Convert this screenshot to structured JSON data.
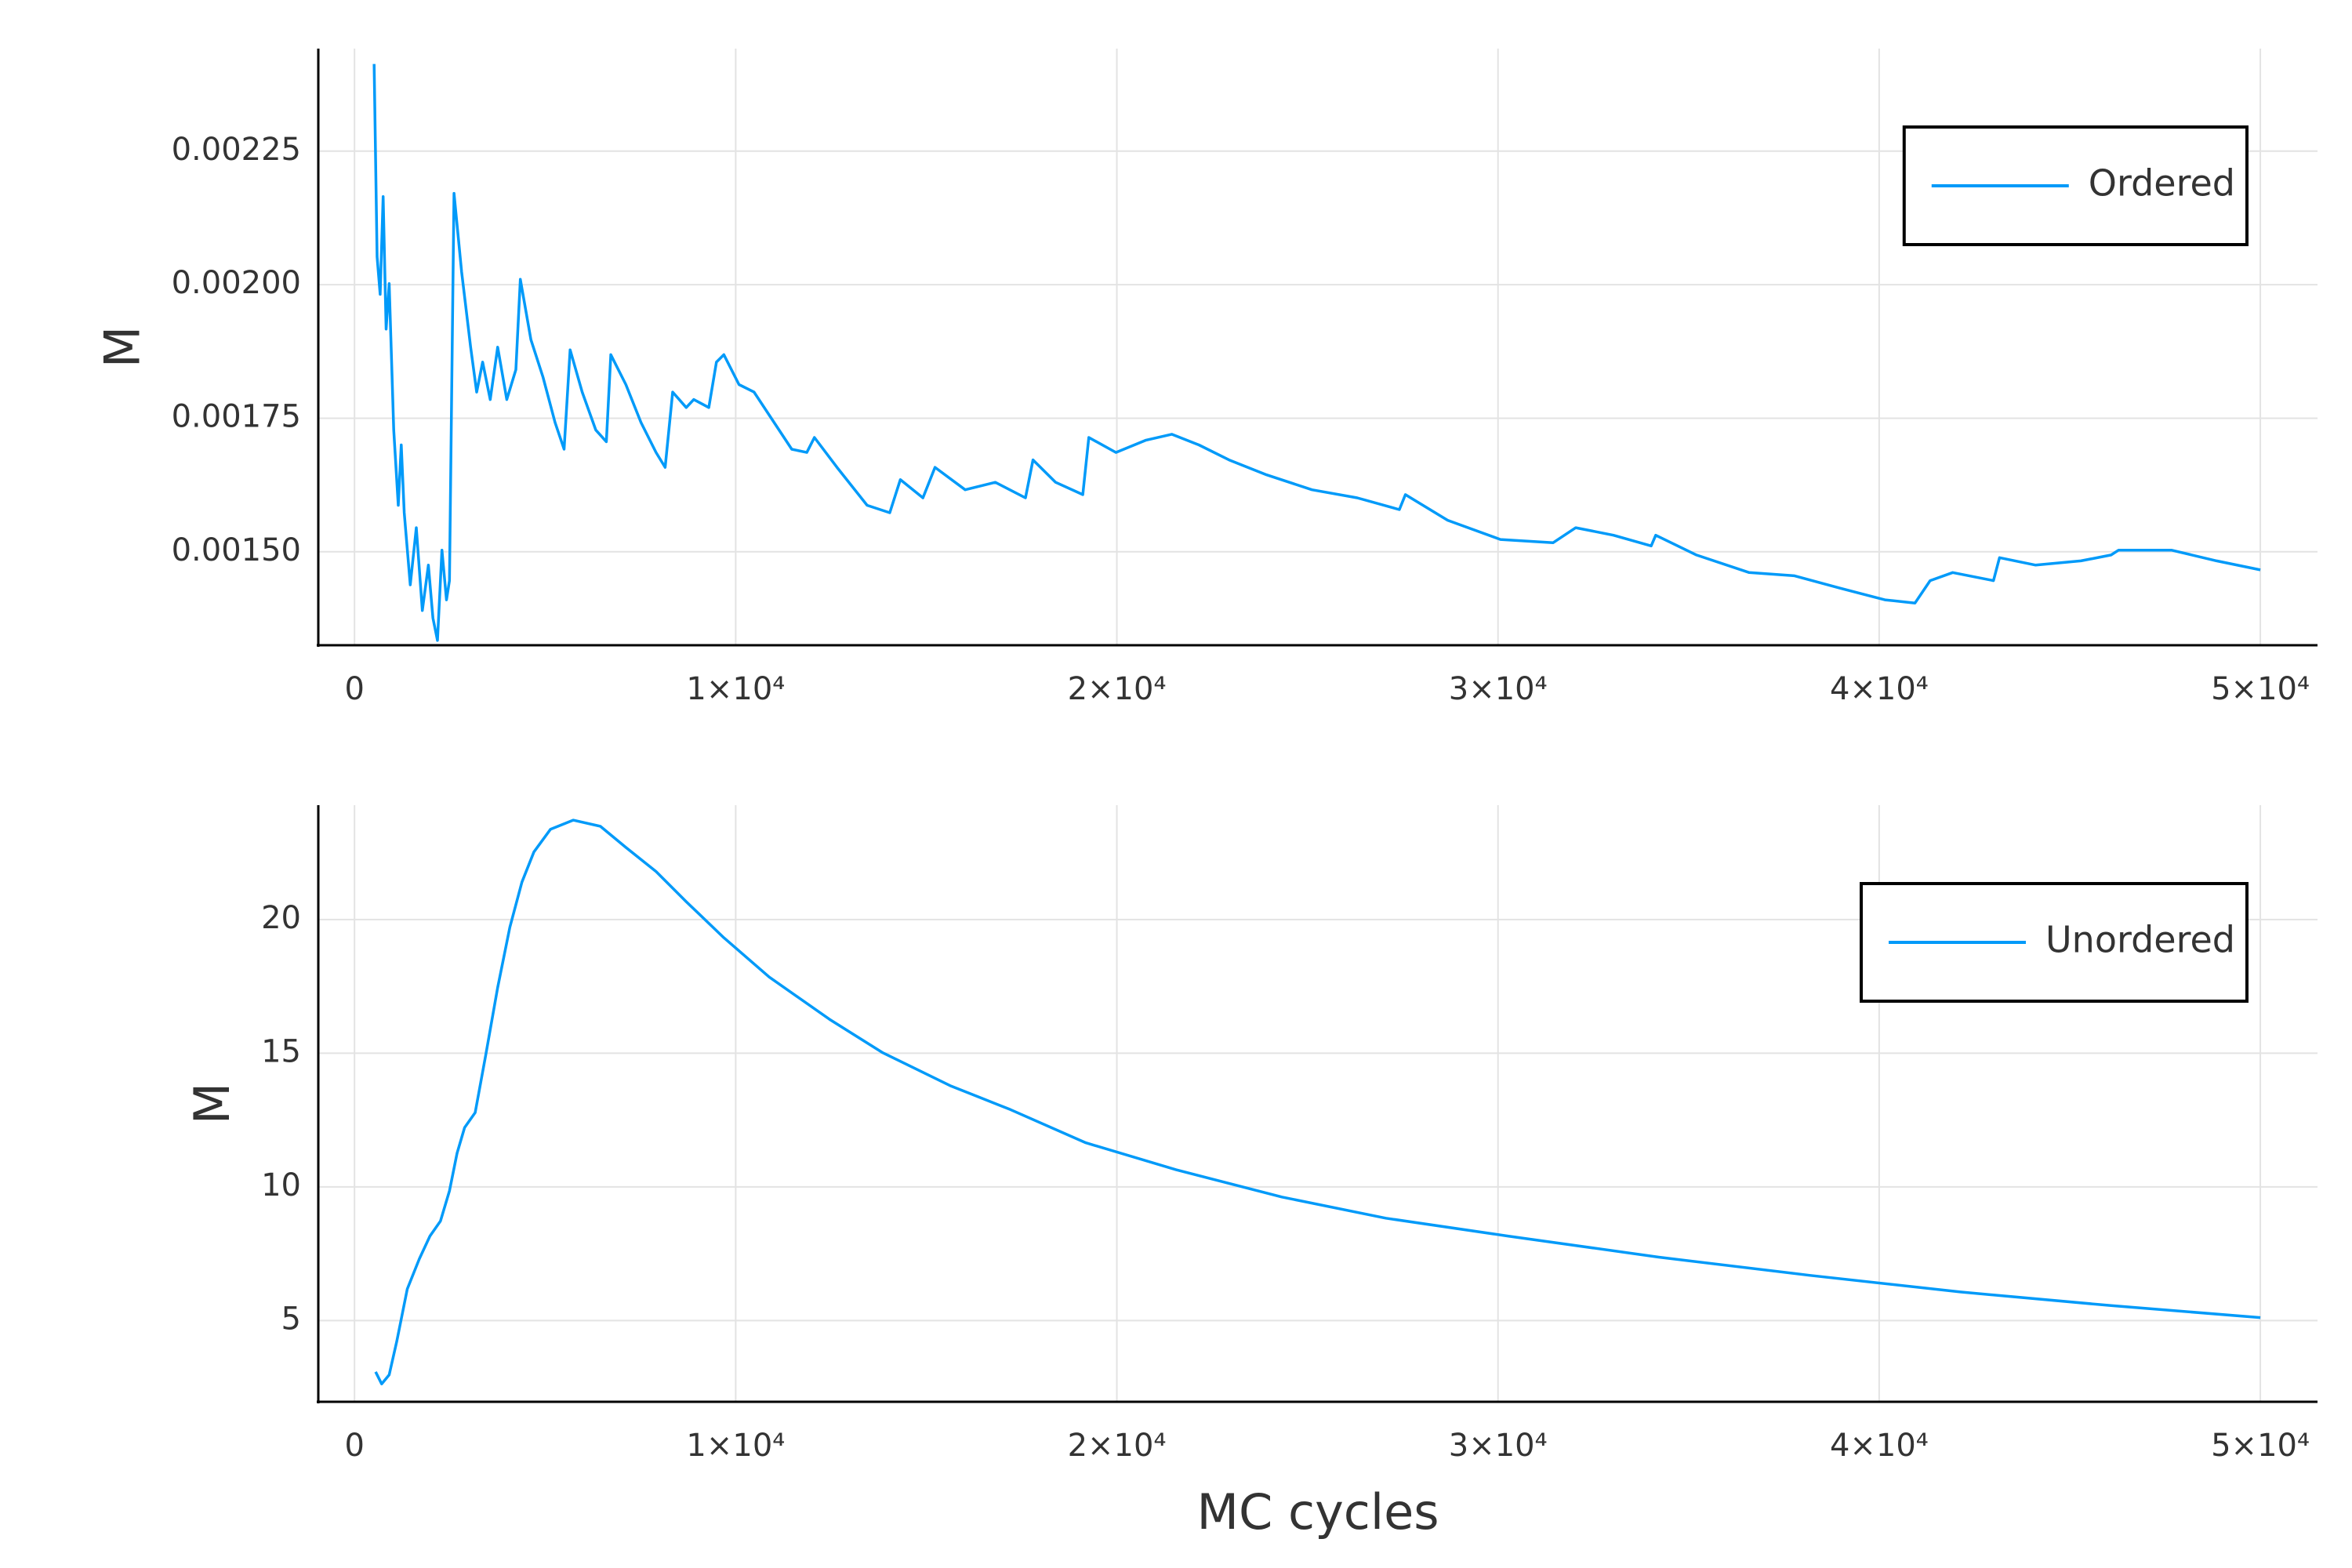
{
  "chart_data": [
    {
      "type": "line",
      "ylabel": "M",
      "grid": true,
      "legend": "top right",
      "xlim": [
        -950,
        51500
      ],
      "ylim": [
        0.001325,
        0.002442
      ],
      "xticks": [
        0,
        {
          "value": 10000,
          "label": "1×10⁴"
        },
        {
          "value": 20000,
          "label": "2×10⁴"
        },
        {
          "value": 30000,
          "label": "3×10⁴"
        },
        {
          "value": 40000,
          "label": "4×10⁴"
        },
        {
          "value": 50000,
          "label": "5×10⁴"
        }
      ],
      "yticks": [
        {
          "value": 0.0015,
          "label": "0.00150"
        },
        {
          "value": 0.00175,
          "label": "0.00175"
        },
        {
          "value": 0.002,
          "label": "0.00200"
        },
        {
          "value": 0.00225,
          "label": "0.00225"
        }
      ],
      "series": [
        {
          "name": "Ordered",
          "color": "#009af9",
          "x": [
            514,
            593,
            672,
            751,
            830,
            909,
            1028,
            1147,
            1226,
            1305,
            1463,
            1621,
            1780,
            1938,
            2057,
            2176,
            2294,
            2413,
            2492,
            2611,
            2809,
            3046,
            3204,
            3362,
            3560,
            3757,
            3995,
            4233,
            4351,
            4628,
            4944,
            5261,
            5498,
            5656,
            5973,
            6329,
            6606,
            6725,
            7120,
            7516,
            7911,
            8149,
            8347,
            8703,
            8900,
            9296,
            9494,
            9691,
            10087,
            10483,
            10878,
            11472,
            11867,
            12065,
            12658,
            13449,
            14043,
            14320,
            14913,
            15229,
            16021,
            16812,
            17603,
            17801,
            18394,
            19106,
            19264,
            19976,
            20767,
            21440,
            22152,
            22943,
            23932,
            25119,
            26305,
            27413,
            27571,
            28679,
            30063,
            31448,
            32041,
            33030,
            34019,
            34138,
            35206,
            36590,
            37777,
            38964,
            40150,
            40941,
            41337,
            41930,
            42998,
            43157,
            44106,
            45293,
            46084,
            46282,
            47666,
            48853,
            50000
          ],
          "values": [
            0.0024133,
            0.002052,
            0.001982,
            0.002165,
            0.001917,
            0.002002,
            0.001728,
            0.001587,
            0.0017,
            0.001573,
            0.001438,
            0.001545,
            0.00139,
            0.001475,
            0.001376,
            0.001334,
            0.001503,
            0.00141,
            0.001446,
            0.002171,
            0.002024,
            0.001883,
            0.001799,
            0.001855,
            0.001785,
            0.001883,
            0.001785,
            0.001841,
            0.00201,
            0.001897,
            0.001827,
            0.001742,
            0.001692,
            0.001878,
            0.001799,
            0.001728,
            0.001706,
            0.001869,
            0.001813,
            0.001742,
            0.001686,
            0.001658,
            0.001799,
            0.00177,
            0.001785,
            0.00177,
            0.001855,
            0.001869,
            0.001813,
            0.001799,
            0.001756,
            0.001692,
            0.001686,
            0.001714,
            0.001658,
            0.001587,
            0.001573,
            0.001635,
            0.001601,
            0.001658,
            0.001616,
            0.00163,
            0.001601,
            0.001672,
            0.00163,
            0.001607,
            0.001714,
            0.001686,
            0.001709,
            0.00172,
            0.0017,
            0.001672,
            0.001644,
            0.001616,
            0.001601,
            0.001579,
            0.001607,
            0.001559,
            0.001523,
            0.001517,
            0.001545,
            0.001531,
            0.001511,
            0.001531,
            0.001494,
            0.001461,
            0.001455,
            0.001432,
            0.00141,
            0.001404,
            0.001446,
            0.001461,
            0.001446,
            0.001489,
            0.001475,
            0.001483,
            0.001494,
            0.001503,
            0.001503,
            0.001483,
            0.001466
          ]
        }
      ]
    },
    {
      "type": "line",
      "ylabel": "M",
      "xlabel": "MC cycles",
      "grid": true,
      "legend": "top right",
      "xlim": [
        -950,
        51500
      ],
      "ylim": [
        1.96,
        24.28
      ],
      "xticks": [
        0,
        {
          "value": 10000,
          "label": "1×10⁴"
        },
        {
          "value": 20000,
          "label": "2×10⁴"
        },
        {
          "value": 30000,
          "label": "3×10⁴"
        },
        {
          "value": 40000,
          "label": "4×10⁴"
        },
        {
          "value": 50000,
          "label": "5×10⁴"
        }
      ],
      "yticks": [
        5,
        10,
        15,
        20
      ],
      "series": [
        {
          "name": "Unordered",
          "color": "#009af9",
          "x": [
            554,
            712,
            909,
            1107,
            1384,
            1701,
            1978,
            2255,
            2492,
            2690,
            2888,
            3165,
            3441,
            3757,
            4074,
            4391,
            4707,
            5142,
            5736,
            6448,
            7120,
            7911,
            8703,
            9691,
            10878,
            12460,
            13845,
            15625,
            17207,
            19185,
            21559,
            24328,
            27057,
            30261,
            34217,
            38172,
            42128,
            46084,
            50000
          ],
          "values": [
            3.08,
            2.63,
            2.97,
            4.21,
            6.18,
            7.31,
            8.16,
            8.72,
            9.85,
            11.26,
            12.22,
            12.78,
            14.92,
            17.46,
            19.71,
            21.4,
            22.53,
            23.38,
            23.72,
            23.49,
            22.7,
            21.8,
            20.67,
            19.32,
            17.85,
            16.27,
            15.03,
            13.79,
            12.89,
            11.65,
            10.64,
            9.62,
            8.83,
            8.16,
            7.37,
            6.69,
            6.07,
            5.56,
            5.11
          ]
        }
      ]
    }
  ]
}
